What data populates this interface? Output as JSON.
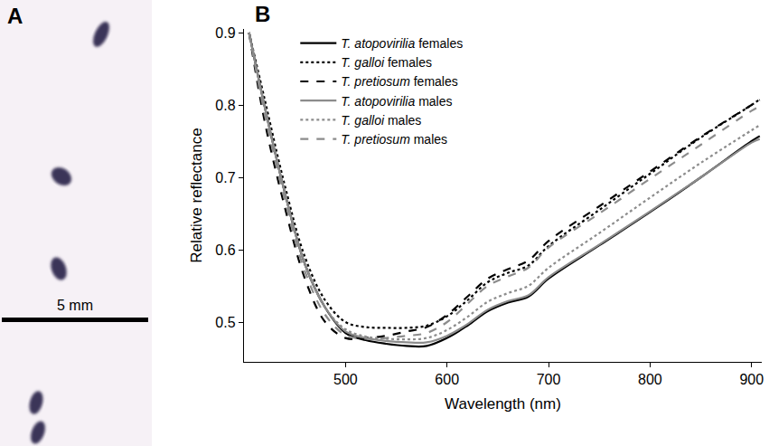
{
  "figure": {
    "panel_a": {
      "letter": "A",
      "scale_bar_label": "5 mm"
    },
    "panel_b_letter": "B"
  },
  "chart_data": {
    "type": "line",
    "x_label": "Wavelength (nm)",
    "y_label": "Relative reflectance",
    "x": [
      405,
      420,
      440,
      460,
      480,
      500,
      520,
      540,
      560,
      580,
      600,
      620,
      640,
      660,
      680,
      700,
      750,
      800,
      850,
      900,
      908
    ],
    "series": [
      {
        "name": "T. atopovirilia females",
        "color": "#000000",
        "line_style": "solid",
        "values": [
          0.9,
          0.8,
          0.68,
          0.58,
          0.52,
          0.485,
          0.475,
          0.47,
          0.467,
          0.467,
          0.478,
          0.495,
          0.515,
          0.527,
          0.535,
          0.56,
          0.606,
          0.652,
          0.7,
          0.75,
          0.757
        ]
      },
      {
        "name": "T. galloi females",
        "color": "#000000",
        "line_style": "dot",
        "values": [
          0.9,
          0.81,
          0.69,
          0.59,
          0.53,
          0.5,
          0.493,
          0.492,
          0.492,
          0.495,
          0.508,
          0.53,
          0.555,
          0.568,
          0.578,
          0.605,
          0.655,
          0.705,
          0.755,
          0.8,
          0.808
        ]
      },
      {
        "name": "T. pretiosum females",
        "color": "#000000",
        "line_style": "dash",
        "values": [
          0.9,
          0.78,
          0.66,
          0.56,
          0.5,
          0.478,
          0.478,
          0.481,
          0.487,
          0.493,
          0.51,
          0.535,
          0.56,
          0.573,
          0.585,
          0.612,
          0.66,
          0.708,
          0.756,
          0.8,
          0.807
        ]
      },
      {
        "name": "T. atopovirilia males",
        "color": "#8c8c8c",
        "line_style": "solid",
        "values": [
          0.9,
          0.8,
          0.68,
          0.58,
          0.52,
          0.487,
          0.478,
          0.474,
          0.472,
          0.472,
          0.481,
          0.497,
          0.517,
          0.529,
          0.537,
          0.562,
          0.607,
          0.653,
          0.7,
          0.748,
          0.753
        ]
      },
      {
        "name": "T. galloi males",
        "color": "#8c8c8c",
        "line_style": "dot",
        "values": [
          0.9,
          0.8,
          0.68,
          0.58,
          0.52,
          0.49,
          0.48,
          0.477,
          0.476,
          0.478,
          0.489,
          0.507,
          0.528,
          0.54,
          0.55,
          0.575,
          0.623,
          0.672,
          0.72,
          0.765,
          0.772
        ]
      },
      {
        "name": "T. pretiosum males",
        "color": "#8c8c8c",
        "line_style": "dash",
        "values": [
          0.9,
          0.79,
          0.67,
          0.57,
          0.51,
          0.482,
          0.477,
          0.478,
          0.481,
          0.485,
          0.5,
          0.525,
          0.55,
          0.563,
          0.575,
          0.603,
          0.65,
          0.698,
          0.745,
          0.792,
          0.798
        ]
      }
    ],
    "xlim": [
      400,
      910
    ],
    "xticks": [
      500,
      600,
      700,
      800,
      900
    ],
    "ylim": [
      0.445,
      0.905
    ],
    "yticks": [
      0.5,
      0.6,
      0.7,
      0.8,
      0.9
    ],
    "grid": false,
    "legend": "top"
  }
}
